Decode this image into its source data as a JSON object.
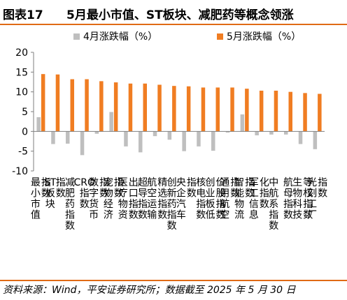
{
  "figure": {
    "number": "图表17",
    "title": "5月最小市值、ST板块、减肥药等概念领涨",
    "source": "资料来源：Wind，平安证券研究所；数据截至 2025 年 5 月 30 日",
    "accent_color": "#e06a15"
  },
  "chart_data": {
    "type": "bar",
    "categories": [
      "最小市值指数",
      "ST板块指数",
      "减肥药指数",
      "CRO指数",
      "数字货币指数",
      "宠物经济指数",
      "医疗物资出口指数",
      "超导指数",
      "航空运输精选指数",
      "创新药指数",
      "央企汽车指数",
      "核电指数",
      "创业板低价股指数",
      "通用航空指数",
      "智能物流指数",
      "军工信息化指数",
      "中航系指数",
      "航母指数",
      "生物科技等权指数",
      "光刻工厂指数"
    ],
    "series": [
      {
        "name": "4月涨跌幅（%）",
        "color": "#bfbfbf",
        "values": [
          3.6,
          -3.2,
          -3.1,
          -6.0,
          -0.6,
          4.9,
          -3.8,
          -5.3,
          -1.2,
          -2.1,
          -5.0,
          -3.8,
          -4.9,
          -0.3,
          4.3,
          -1.0,
          -0.8,
          -0.8,
          -3.2,
          -4.5
        ]
      },
      {
        "name": "5月涨跌幅（%）",
        "color": "#f07d22",
        "values": [
          14.5,
          14.4,
          13.2,
          13.2,
          12.7,
          12.4,
          12.1,
          12.1,
          11.8,
          11.5,
          11.4,
          11.1,
          11.1,
          11.1,
          10.8,
          10.3,
          10.3,
          10.0,
          9.7,
          9.5
        ]
      }
    ],
    "ylim": [
      -10,
      20
    ],
    "yticks": [
      "-10",
      "-5",
      "0",
      "5",
      "10",
      "15",
      "20"
    ],
    "legend_position": "top",
    "grid": false
  }
}
